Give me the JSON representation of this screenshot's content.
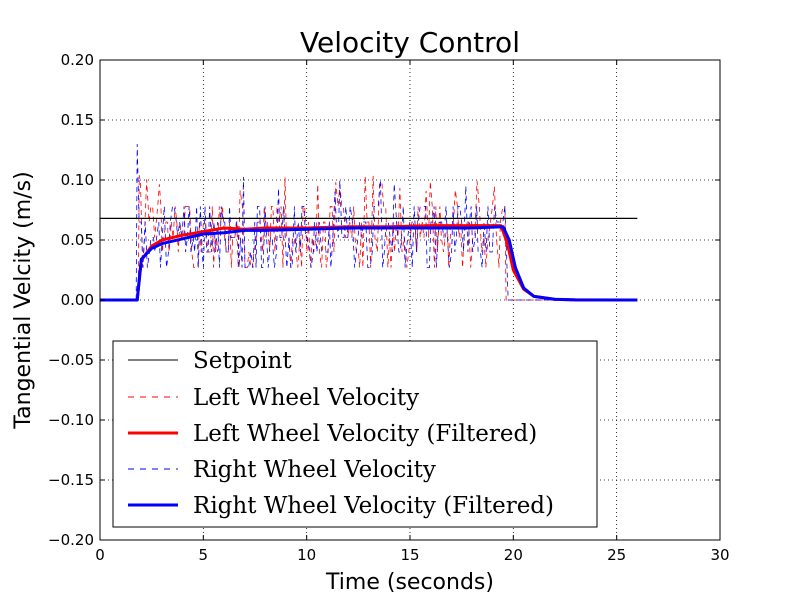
{
  "chart_data": {
    "type": "line",
    "title": "Velocity Control",
    "xlabel": "Time (seconds)",
    "ylabel": "Tangential Velcity (m/s)",
    "xlim": [
      0,
      30
    ],
    "ylim": [
      -0.2,
      0.2
    ],
    "xticks": [
      0,
      5,
      10,
      15,
      20,
      25,
      30
    ],
    "yticks": [
      -0.2,
      -0.15,
      -0.1,
      -0.05,
      0.0,
      0.05,
      0.1,
      0.15,
      0.2
    ],
    "xtick_labels": [
      "0",
      "5",
      "10",
      "15",
      "20",
      "25",
      "30"
    ],
    "ytick_labels": [
      "−0.20",
      "−0.15",
      "−0.10",
      "−0.05",
      "0.00",
      "0.05",
      "0.10",
      "0.15",
      "0.20"
    ],
    "grid": true,
    "legend_position": "lower-left",
    "series": [
      {
        "name": "Setpoint",
        "color": "#000000",
        "style": "solid-thin",
        "x": [
          0,
          26
        ],
        "y": [
          0.068,
          0.068
        ]
      },
      {
        "name": "Left Wheel Velocity",
        "color": "#ff0000",
        "style": "dashed-raw",
        "t_start": 1.9,
        "t_end": 19.6,
        "levels": [
          0.027,
          0.04,
          0.052,
          0.065,
          0.078
        ],
        "spike_max": 0.104,
        "total_range": [
          0,
          26
        ],
        "baseline": 0.0
      },
      {
        "name": "Left Wheel Velocity (Filtered)",
        "color": "#ff0000",
        "style": "solid-thick",
        "x": [
          0,
          1.8,
          2.0,
          2.5,
          3,
          4,
          5,
          6,
          7,
          8,
          10,
          12,
          14,
          16,
          18,
          19.4,
          19.7,
          20,
          20.5,
          21,
          22,
          23,
          26
        ],
        "y": [
          0,
          0,
          0.033,
          0.045,
          0.05,
          0.054,
          0.057,
          0.06,
          0.059,
          0.06,
          0.06,
          0.061,
          0.061,
          0.062,
          0.062,
          0.062,
          0.048,
          0.025,
          0.009,
          0.003,
          0.0005,
          0.0001,
          0
        ]
      },
      {
        "name": "Right Wheel Velocity",
        "color": "#0000ff",
        "style": "dashed-raw",
        "t_start": 1.8,
        "t_end": 19.7,
        "levels": [
          0.027,
          0.04,
          0.052,
          0.065,
          0.078
        ],
        "spike_max": 0.13,
        "total_range": [
          0,
          26
        ],
        "baseline": 0.0
      },
      {
        "name": "Right Wheel Velocity (Filtered)",
        "color": "#0000ff",
        "style": "solid-thick",
        "x": [
          0,
          1.8,
          2.0,
          2.5,
          3,
          4,
          5,
          6,
          7,
          8,
          10,
          12,
          14,
          16,
          18,
          19.5,
          19.8,
          20.1,
          20.5,
          21,
          22,
          23,
          26
        ],
        "y": [
          0,
          0,
          0.034,
          0.043,
          0.047,
          0.051,
          0.055,
          0.056,
          0.058,
          0.058,
          0.059,
          0.06,
          0.06,
          0.06,
          0.06,
          0.061,
          0.05,
          0.027,
          0.01,
          0.003,
          0.0006,
          0.0001,
          0
        ]
      }
    ]
  }
}
